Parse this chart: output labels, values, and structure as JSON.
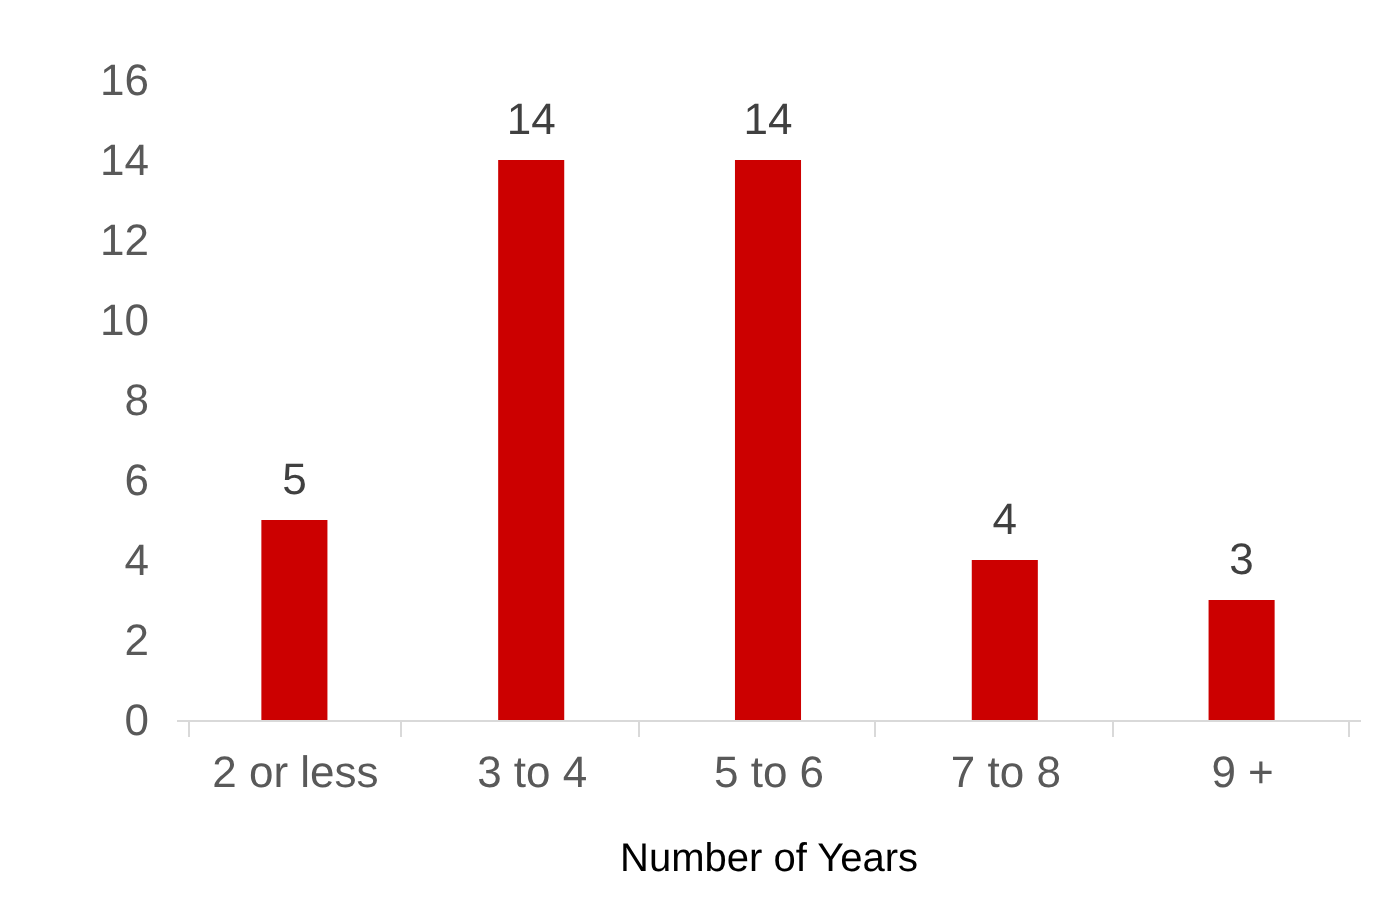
{
  "chart_data": {
    "type": "bar",
    "xlabel": "Number of Years",
    "categories": [
      "2 or less",
      "3 to 4",
      "5 to 6",
      "7 to 8",
      "9 +"
    ],
    "values": [
      5,
      14,
      14,
      4,
      3
    ],
    "color": "#cc0000",
    "ylim": [
      0,
      16
    ],
    "yticks": [
      0,
      2,
      4,
      6,
      8,
      10,
      12,
      14,
      16
    ],
    "grid": false,
    "data_labels": true
  }
}
